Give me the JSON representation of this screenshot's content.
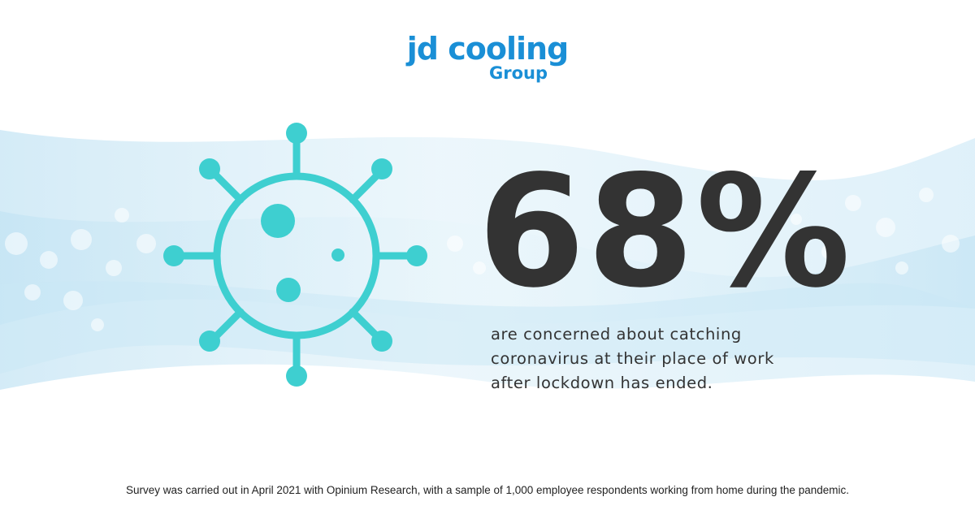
{
  "brand": {
    "name": "jd cooling",
    "sub": "Group",
    "color": "#1a8fd6"
  },
  "stat": {
    "value": "68%",
    "color": "#333333"
  },
  "description": {
    "lines": [
      "are concerned about catching",
      "coronavirus at their place of work",
      "after lockdown has ended."
    ],
    "color": "#333333"
  },
  "footnote": "Survey was carried out in April 2021 with Opinium Research, with a sample of 1,000 employee respondents working from home during the pandemic.",
  "colors": {
    "virus": "#3ecfd0",
    "wave": "#d6eef8",
    "text": "#333333",
    "footnote": "#222222"
  },
  "icons": {
    "illustration": "virus-icon"
  }
}
